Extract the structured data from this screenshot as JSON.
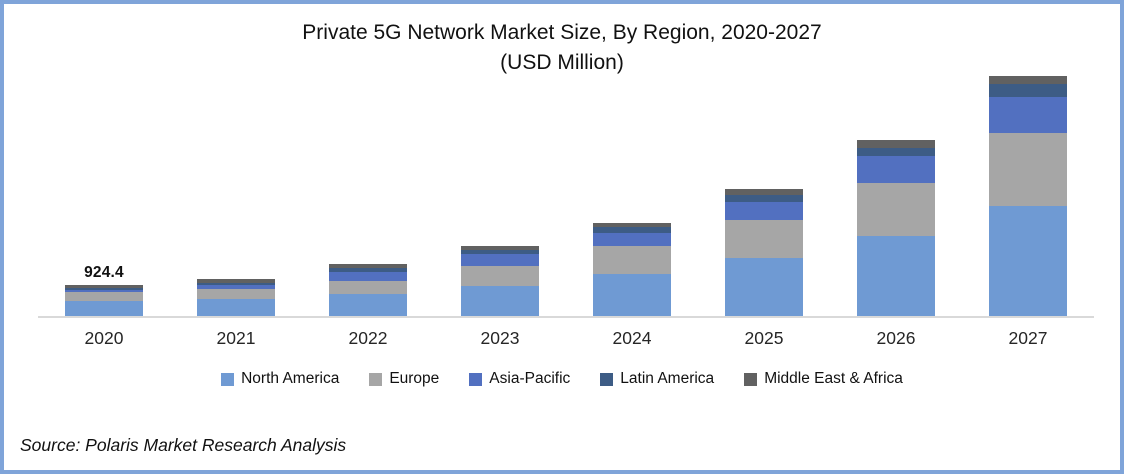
{
  "frame": {
    "border_color": "#7FA4D9",
    "background": "#FFFFFF"
  },
  "chart_data": {
    "type": "bar",
    "stacked": true,
    "title": "Private 5G Network Market Size, By Region, 2020-2027",
    "subtitle": "(USD Million)",
    "categories": [
      "2020",
      "2021",
      "2022",
      "2023",
      "2024",
      "2025",
      "2026",
      "2027"
    ],
    "series": [
      {
        "name": "North America",
        "color": "#6F9AD3",
        "values": [
          440.2,
          499.0,
          645.7,
          880.5,
          1232.7,
          1702.3,
          2348.0,
          3228.5
        ]
      },
      {
        "name": "Europe",
        "color": "#A6A6A6",
        "values": [
          264.1,
          293.5,
          396.2,
          587.0,
          821.8,
          1115.3,
          1555.6,
          2142.6
        ]
      },
      {
        "name": "Asia-Pacific",
        "color": "#5270C0",
        "values": [
          73.4,
          117.4,
          249.5,
          352.2,
          381.6,
          528.3,
          792.5,
          1056.6
        ]
      },
      {
        "name": "Latin America",
        "color": "#3D5C85",
        "values": [
          44.0,
          58.7,
          117.4,
          117.4,
          176.1,
          205.5,
          234.8,
          381.6
        ]
      },
      {
        "name": "Middle East & Africa",
        "color": "#616161",
        "values": [
          102.7,
          117.4,
          132.1,
          117.4,
          117.4,
          176.1,
          234.8,
          234.8
        ]
      }
    ],
    "totals": [
      924.4,
      1086.0,
      1540.9,
      2054.5,
      2729.6,
      3727.5,
      5165.7,
      7044.1
    ],
    "data_labels": [
      {
        "category": "2020",
        "text": "924.4"
      }
    ],
    "xlabel": "",
    "ylabel": "",
    "ylim": [
      0,
      7400
    ],
    "gridlines": false,
    "legend_position": "bottom",
    "axis_line_color": "#D9D9D9"
  },
  "source": {
    "text": "Source: Polaris Market Research Analysis"
  }
}
